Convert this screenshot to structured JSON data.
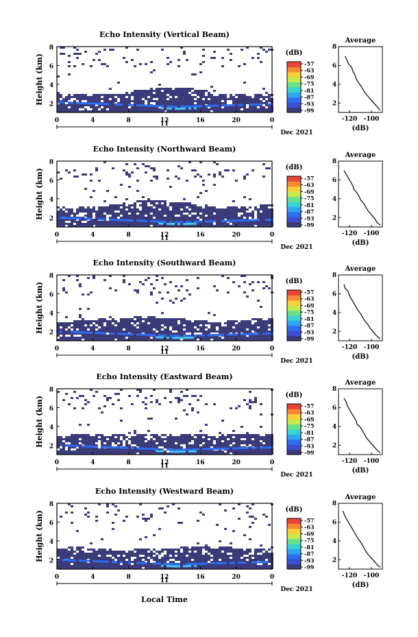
{
  "panels": [
    {
      "title": "Echo Intensity (Vertical Beam)",
      "cloud_seed": 3
    },
    {
      "title": "Echo Intensity (Northward Beam)",
      "cloud_seed": 7
    },
    {
      "title": "Echo Intensity (Southward Beam)",
      "cloud_seed": 11
    },
    {
      "title": "Echo Intensity (Eastward Beam)",
      "cloud_seed": 17
    },
    {
      "title": "Echo Intensity (Westward Beam)",
      "cloud_seed": 23
    }
  ],
  "ylabel": "Height (km)",
  "y_ticks": [
    "2",
    "4",
    "6",
    "8"
  ],
  "x_ticks": [
    "0",
    "4",
    "8",
    "12",
    "16",
    "20",
    "0"
  ],
  "day_label": "11",
  "date_label": "Dec 2021",
  "xlabel": "Local Time",
  "colorbar": {
    "unit": "(dB)",
    "ticks": [
      "-57",
      "-63",
      "-69",
      "-75",
      "-81",
      "-87",
      "-93",
      "-99"
    ]
  },
  "avg": {
    "title": "Average",
    "xlabel": "(dB)",
    "x_ticks": [
      "-120",
      "-100"
    ],
    "y_ticks": [
      "2",
      "4",
      "6",
      "8"
    ]
  },
  "colors": {
    "background_echo": "#3b3b7a",
    "strong_echo": "#2f6cf0",
    "peak_echo": "#46c4f0",
    "colorbar": [
      "#3b3b7a",
      "#3a4fd0",
      "#2f6cf0",
      "#2fa7ef",
      "#3ad3d0",
      "#6be08a",
      "#c8e850",
      "#f6cf3a",
      "#f58a32",
      "#e8453a"
    ]
  },
  "chart_data": [
    {
      "type": "heatmap",
      "title": "Echo Intensity (Vertical Beam)",
      "xlabel": "",
      "ylabel": "Height (km)",
      "xlim": [
        0,
        24
      ],
      "ylim": [
        1,
        8
      ],
      "colorbar_range_db": [
        -99,
        -57
      ],
      "cloud_top_km": 3.2,
      "strong_layer_km": [
        1.6,
        2.2
      ]
    },
    {
      "type": "heatmap",
      "title": "Echo Intensity (Northward Beam)",
      "xlabel": "",
      "ylabel": "Height (km)",
      "xlim": [
        0,
        24
      ],
      "ylim": [
        1,
        8
      ],
      "colorbar_range_db": [
        -99,
        -57
      ],
      "cloud_top_km": 3.4,
      "strong_layer_km": [
        1.5,
        2.1
      ]
    },
    {
      "type": "heatmap",
      "title": "Echo Intensity (Southward Beam)",
      "xlabel": "",
      "ylabel": "Height (km)",
      "xlim": [
        0,
        24
      ],
      "ylim": [
        1,
        8
      ],
      "colorbar_range_db": [
        -99,
        -57
      ],
      "cloud_top_km": 3.3,
      "strong_layer_km": [
        1.5,
        2.1
      ]
    },
    {
      "type": "heatmap",
      "title": "Echo Intensity (Eastward Beam)",
      "xlabel": "",
      "ylabel": "Height (km)",
      "xlim": [
        0,
        24
      ],
      "ylim": [
        1,
        8
      ],
      "colorbar_range_db": [
        -99,
        -57
      ],
      "cloud_top_km": 3.1,
      "strong_layer_km": [
        1.5,
        2.1
      ]
    },
    {
      "type": "heatmap",
      "title": "Echo Intensity (Westward Beam)",
      "xlabel": "",
      "ylabel": "Height (km)",
      "xlim": [
        0,
        24
      ],
      "ylim": [
        1,
        8
      ],
      "colorbar_range_db": [
        -99,
        -57
      ],
      "cloud_top_km": 3.2,
      "strong_layer_km": [
        1.5,
        2.1
      ]
    },
    {
      "type": "line",
      "title": "Average",
      "xlabel": "(dB)",
      "xlim": [
        -130,
        -90
      ],
      "ylim": [
        1,
        8
      ],
      "profiles": [
        {
          "x": [
            -124,
            -122,
            -121,
            -118,
            -117,
            -115,
            -114,
            -112,
            -110,
            -108,
            -106,
            -103,
            -100,
            -97,
            -94,
            -92
          ],
          "y": [
            7.0,
            6.5,
            6.2,
            5.8,
            5.4,
            5.0,
            4.6,
            4.2,
            3.9,
            3.5,
            3.1,
            2.7,
            2.3,
            1.9,
            1.5,
            1.2
          ]
        },
        {
          "x": [
            -125,
            -123,
            -121,
            -119,
            -117,
            -116,
            -113,
            -111,
            -110,
            -107,
            -105,
            -103,
            -100,
            -97,
            -95,
            -92
          ],
          "y": [
            7.0,
            6.6,
            6.2,
            5.8,
            5.4,
            5.0,
            4.6,
            4.2,
            3.9,
            3.5,
            3.1,
            2.7,
            2.3,
            1.9,
            1.5,
            1.2
          ]
        },
        {
          "x": [
            -125,
            -124,
            -121,
            -120,
            -118,
            -116,
            -114,
            -112,
            -110,
            -108,
            -106,
            -103,
            -101,
            -98,
            -95,
            -92
          ],
          "y": [
            7.0,
            6.6,
            6.2,
            5.8,
            5.4,
            5.0,
            4.6,
            4.2,
            3.9,
            3.5,
            3.1,
            2.7,
            2.3,
            1.9,
            1.5,
            1.2
          ]
        },
        {
          "x": [
            -125,
            -123,
            -122,
            -120,
            -118,
            -116,
            -114,
            -113,
            -110,
            -108,
            -106,
            -104,
            -101,
            -98,
            -95,
            -92
          ],
          "y": [
            7.0,
            6.6,
            6.2,
            5.8,
            5.4,
            5.0,
            4.6,
            4.2,
            3.9,
            3.5,
            3.1,
            2.7,
            2.3,
            1.9,
            1.5,
            1.2
          ]
        },
        {
          "x": [
            -126,
            -124,
            -122,
            -120,
            -118,
            -116,
            -114,
            -112,
            -110,
            -108,
            -106,
            -104,
            -101,
            -98,
            -95,
            -92
          ],
          "y": [
            7.2,
            6.6,
            6.2,
            5.8,
            5.4,
            5.0,
            4.6,
            4.2,
            3.9,
            3.5,
            3.1,
            2.7,
            2.3,
            1.9,
            1.5,
            1.2
          ]
        }
      ]
    }
  ]
}
